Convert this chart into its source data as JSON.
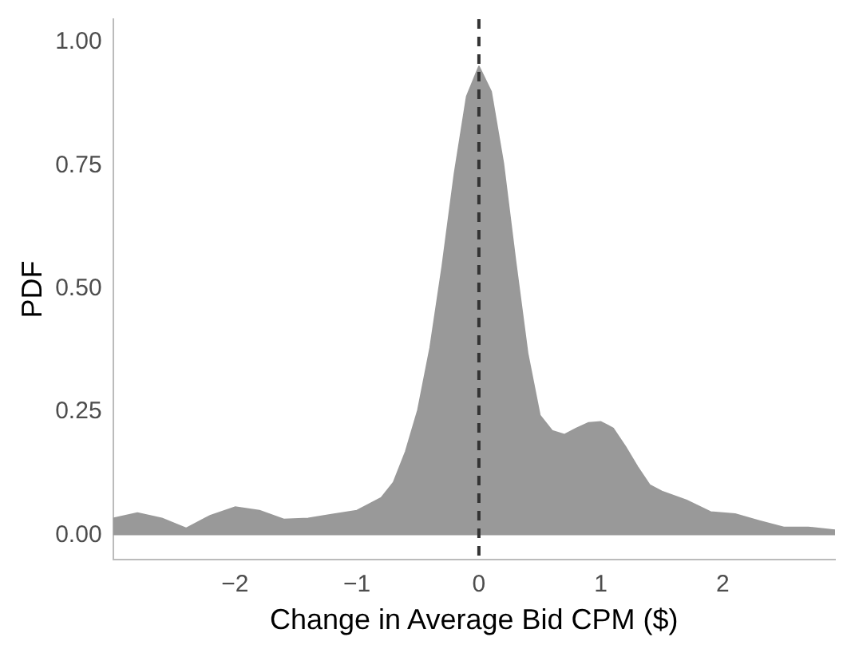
{
  "chart_data": {
    "type": "area",
    "xlabel": "Change in Average Bid CPM ($)",
    "ylabel": "PDF",
    "x": [
      -3,
      -2.8,
      -2.6,
      -2.4,
      -2.2,
      -2.0,
      -1.8,
      -1.6,
      -1.4,
      -1.2,
      -1.0,
      -0.8,
      -0.7,
      -0.6,
      -0.5,
      -0.4,
      -0.3,
      -0.2,
      -0.1,
      0.0,
      0.1,
      0.2,
      0.3,
      0.4,
      0.5,
      0.6,
      0.7,
      0.8,
      0.9,
      1.0,
      1.1,
      1.2,
      1.3,
      1.4,
      1.5,
      1.7,
      1.9,
      2.1,
      2.3,
      2.5,
      2.7,
      2.92
    ],
    "series": [
      {
        "color": "#999999",
        "values": [
          0.034,
          0.045,
          0.034,
          0.014,
          0.04,
          0.057,
          0.05,
          0.032,
          0.034,
          0.042,
          0.05,
          0.076,
          0.107,
          0.17,
          0.254,
          0.38,
          0.546,
          0.734,
          0.89,
          0.951,
          0.9,
          0.755,
          0.556,
          0.368,
          0.243,
          0.212,
          0.204,
          0.217,
          0.228,
          0.23,
          0.217,
          0.18,
          0.139,
          0.102,
          0.089,
          0.071,
          0.047,
          0.043,
          0.029,
          0.016,
          0.016,
          0.01
        ]
      }
    ],
    "xlim": [
      -3,
      2.92
    ],
    "xticks": [
      {
        "value": -2,
        "label": "−2"
      },
      {
        "value": -1,
        "label": "−1"
      },
      0,
      1,
      2
    ],
    "ylim": [
      -0.049,
      1.047
    ],
    "yticks": [
      {
        "value": 0,
        "label": "0.00"
      },
      {
        "value": 0.25,
        "label": "0.25"
      },
      {
        "value": 0.5,
        "label": "0.50"
      },
      {
        "value": 0.75,
        "label": "0.75"
      },
      {
        "value": 1,
        "label": "1.00"
      }
    ],
    "ref_lines": [
      {
        "axis": "x",
        "value": 0,
        "color": "#333333",
        "line_style": "dashed"
      }
    ],
    "grid": false,
    "legend": false
  }
}
